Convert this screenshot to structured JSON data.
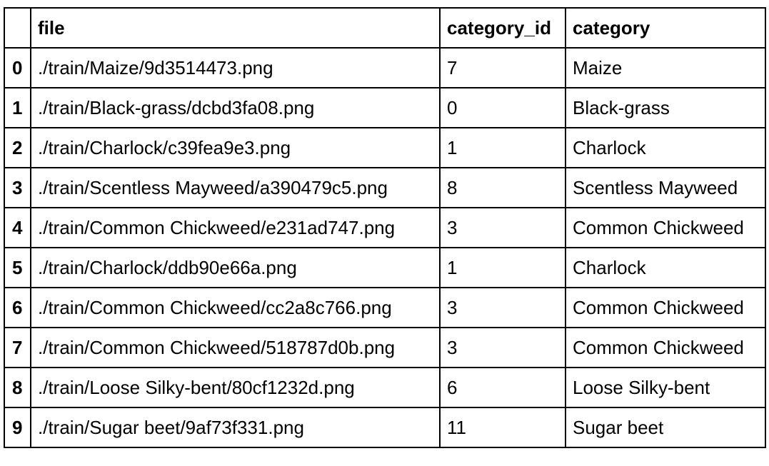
{
  "table": {
    "columns": [
      "",
      "file",
      "category_id",
      "category"
    ],
    "rows": [
      {
        "index": "0",
        "file": "./train/Maize/9d3514473.png",
        "category_id": "7",
        "category": "Maize"
      },
      {
        "index": "1",
        "file": "./train/Black-grass/dcbd3fa08.png",
        "category_id": "0",
        "category": "Black-grass"
      },
      {
        "index": "2",
        "file": "./train/Charlock/c39fea9e3.png",
        "category_id": "1",
        "category": "Charlock"
      },
      {
        "index": "3",
        "file": "./train/Scentless Mayweed/a390479c5.png",
        "category_id": "8",
        "category": "Scentless Mayweed"
      },
      {
        "index": "4",
        "file": "./train/Common Chickweed/e231ad747.png",
        "category_id": "3",
        "category": "Common Chickweed"
      },
      {
        "index": "5",
        "file": "./train/Charlock/ddb90e66a.png",
        "category_id": "1",
        "category": "Charlock"
      },
      {
        "index": "6",
        "file": "./train/Common Chickweed/cc2a8c766.png",
        "category_id": "3",
        "category": "Common Chickweed"
      },
      {
        "index": "7",
        "file": "./train/Common Chickweed/518787d0b.png",
        "category_id": "3",
        "category": "Common Chickweed"
      },
      {
        "index": "8",
        "file": "./train/Loose Silky-bent/80cf1232d.png",
        "category_id": "6",
        "category": "Loose Silky-bent"
      },
      {
        "index": "9",
        "file": "./train/Sugar beet/9af73f331.png",
        "category_id": "11",
        "category": "Sugar beet"
      }
    ]
  }
}
